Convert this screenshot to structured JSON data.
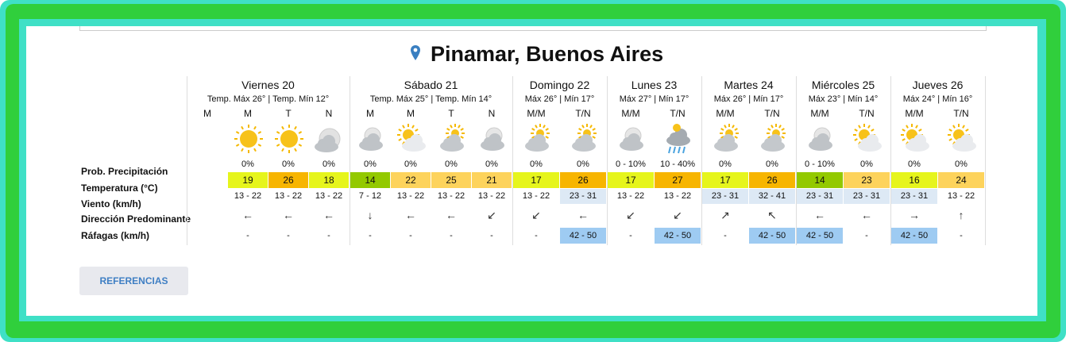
{
  "location": "Pinamar, Buenos Aires",
  "button": "REFERENCIAS",
  "row_labels": [
    "Prob. Precipitación",
    "Temperatura (°C)",
    "Viento (km/h)",
    "Dirección Predominante",
    "Ráfagas (km/h)"
  ],
  "days": [
    {
      "name": "Viernes 20",
      "summary": "Temp. Máx 26° | Temp. Mín 12°",
      "periods": [
        {
          "label": "M"
        },
        {
          "label": "M",
          "precip": "0%",
          "temp": 19,
          "wind": "13 - 22",
          "direction": "←",
          "gusts": "-"
        },
        {
          "label": "T",
          "precip": "0%",
          "temp": 26,
          "wind": "13 - 22",
          "direction": "←",
          "gusts": "-"
        },
        {
          "label": "N",
          "precip": "0%",
          "temp": 18,
          "wind": "13 - 22",
          "direction": "←",
          "gusts": "-"
        }
      ]
    },
    {
      "name": "Sábado 21",
      "summary": "Temp. Máx 25° | Temp. Mín 14°",
      "periods": [
        {
          "label": "M",
          "precip": "0%",
          "temp": 14,
          "wind": "7 - 12",
          "direction": "↓",
          "gusts": "-"
        },
        {
          "label": "M",
          "precip": "0%",
          "temp": 22,
          "wind": "13 - 22",
          "direction": "←",
          "gusts": "-"
        },
        {
          "label": "T",
          "precip": "0%",
          "temp": 25,
          "wind": "13 - 22",
          "direction": "←",
          "gusts": "-"
        },
        {
          "label": "N",
          "precip": "0%",
          "temp": 21,
          "wind": "13 - 22",
          "direction": "↙",
          "gusts": "-"
        }
      ]
    },
    {
      "name": "Domingo 22",
      "summary": "Máx 26° | Mín 17°",
      "periods": [
        {
          "label": "M/M",
          "precip": "0%",
          "temp": 17,
          "wind": "13 - 22",
          "direction": "↙",
          "gusts": "-"
        },
        {
          "label": "T/N",
          "precip": "0%",
          "temp": 26,
          "wind": "23 - 31",
          "direction": "←",
          "gusts": "42 - 50"
        }
      ]
    },
    {
      "name": "Lunes 23",
      "summary": "Máx 27° | Mín 17°",
      "periods": [
        {
          "label": "M/M",
          "precip": "0 - 10%",
          "temp": 17,
          "wind": "13 - 22",
          "direction": "↙",
          "gusts": "-"
        },
        {
          "label": "T/N",
          "precip": "10 - 40%",
          "temp": 27,
          "wind": "13 - 22",
          "direction": "↙",
          "gusts": "42 - 50"
        }
      ]
    },
    {
      "name": "Martes 24",
      "summary": "Máx 26° | Mín 17°",
      "periods": [
        {
          "label": "M/M",
          "precip": "0%",
          "temp": 17,
          "wind": "23 - 31",
          "direction": "↗",
          "gusts": "-"
        },
        {
          "label": "T/N",
          "precip": "0%",
          "temp": 26,
          "wind": "32 - 41",
          "direction": "↖",
          "gusts": "42 - 50"
        }
      ]
    },
    {
      "name": "Miércoles 25",
      "summary": "Máx 23° | Mín 14°",
      "periods": [
        {
          "label": "M/M",
          "precip": "0 - 10%",
          "temp": 14,
          "wind": "23 - 31",
          "direction": "←",
          "gusts": "42 - 50"
        },
        {
          "label": "T/N",
          "precip": "0%",
          "temp": 23,
          "wind": "23 - 31",
          "direction": "←",
          "gusts": "-"
        }
      ]
    },
    {
      "name": "Jueves 26",
      "summary": "Máx 24° | Mín 16°",
      "periods": [
        {
          "label": "M/M",
          "precip": "0%",
          "temp": 16,
          "wind": "23 - 31",
          "direction": "→",
          "gusts": "42 - 50"
        },
        {
          "label": "T/N",
          "precip": "0%",
          "temp": 24,
          "wind": "13 - 22",
          "direction": "↑",
          "gusts": "-"
        }
      ]
    }
  ]
}
